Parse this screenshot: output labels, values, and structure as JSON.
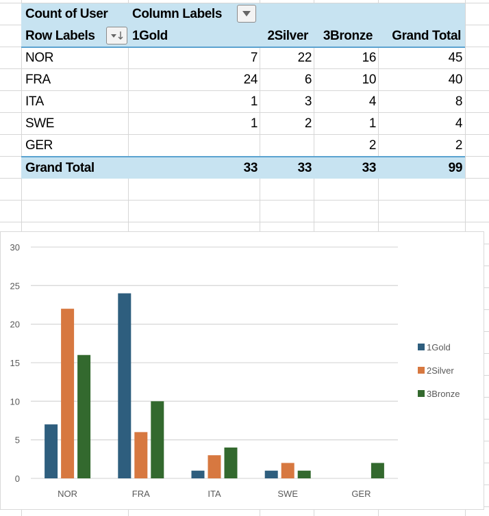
{
  "pivot": {
    "value_field": "Count of User",
    "column_labels": "Column Labels",
    "row_labels": "Row Labels",
    "columns": [
      "1Gold",
      "2Silver",
      "3Bronze",
      "Grand Total"
    ],
    "rows": [
      {
        "label": "NOR",
        "values": [
          "7",
          "22",
          "16",
          "45"
        ]
      },
      {
        "label": "FRA",
        "values": [
          "24",
          "6",
          "10",
          "40"
        ]
      },
      {
        "label": "ITA",
        "values": [
          "1",
          "3",
          "4",
          "8"
        ]
      },
      {
        "label": "SWE",
        "values": [
          "1",
          "2",
          "1",
          "4"
        ]
      },
      {
        "label": "GER",
        "values": [
          "",
          "",
          "2",
          "2"
        ]
      }
    ],
    "grand_total": {
      "label": "Grand Total",
      "values": [
        "33",
        "33",
        "33",
        "99"
      ]
    },
    "header_color": "#c7e3f1",
    "border_color": "#5aa2d0"
  },
  "chart_data": {
    "type": "bar",
    "title": "",
    "xlabel": "",
    "ylabel": "",
    "categories": [
      "NOR",
      "FRA",
      "ITA",
      "SWE",
      "GER"
    ],
    "series": [
      {
        "name": "1Gold",
        "color": "#2e5e7e",
        "values": [
          7,
          24,
          1,
          1,
          0
        ]
      },
      {
        "name": "2Silver",
        "color": "#d77840",
        "values": [
          22,
          6,
          3,
          2,
          0
        ]
      },
      {
        "name": "3Bronze",
        "color": "#33692e",
        "values": [
          16,
          10,
          4,
          1,
          2
        ]
      }
    ],
    "ylim": [
      0,
      30
    ],
    "yticks": [
      "0",
      "5",
      "10",
      "15",
      "20",
      "25",
      "30"
    ],
    "grid": true,
    "legend": "right"
  }
}
